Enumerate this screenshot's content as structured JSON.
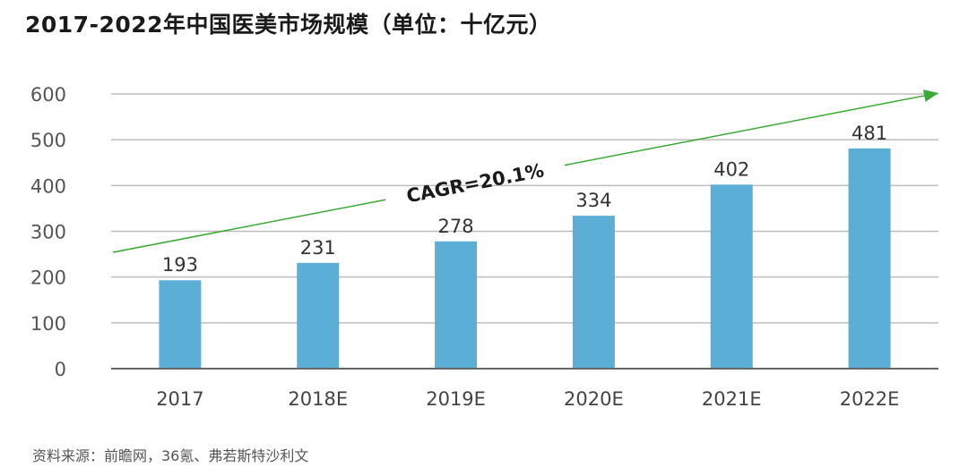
{
  "title": "2017-2022年中国医美市场规模（单位：十亿元）",
  "source": "资料来源：前瞻网，36氪、弗若斯特沙利文",
  "colors": {
    "bar": "#5BAFD6",
    "grid": "#BDBDBD",
    "axis": "#666666",
    "trend": "#3AAA35"
  },
  "chart_data": {
    "type": "bar",
    "title": "2017-2022年中国医美市场规模（单位：十亿元）",
    "xlabel": "",
    "ylabel": "",
    "categories": [
      "2017",
      "2018E",
      "2019E",
      "2020E",
      "2021E",
      "2022E"
    ],
    "values": [
      193,
      231,
      278,
      334,
      402,
      481
    ],
    "data_labels": [
      "193",
      "231",
      "278",
      "334",
      "402",
      "481"
    ],
    "ylim": [
      0,
      600
    ],
    "yticks": [
      0,
      100,
      200,
      300,
      400,
      500,
      600
    ],
    "grid": true,
    "annotation": {
      "text": "CAGR=20.1%",
      "type": "trend-arrow"
    }
  }
}
